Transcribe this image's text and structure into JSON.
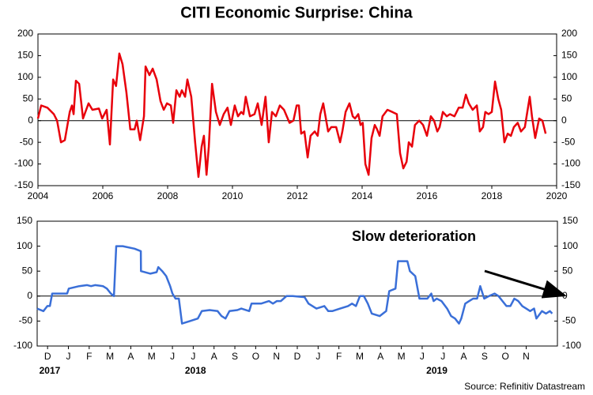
{
  "chart_data": [
    {
      "type": "line",
      "title": "CITI Economic Surprise: China",
      "xlim": [
        2004,
        2020
      ],
      "xticks": [
        2004,
        2006,
        2008,
        2010,
        2012,
        2014,
        2016,
        2018,
        2020
      ],
      "ylim": [
        -150,
        200
      ],
      "yticks": [
        -150,
        -100,
        -50,
        0,
        50,
        100,
        150,
        200
      ],
      "x": [
        2004.0,
        2004.1,
        2004.29,
        2004.49,
        2004.59,
        2004.71,
        2004.83,
        2004.98,
        2005.05,
        2005.1,
        2005.17,
        2005.27,
        2005.39,
        2005.56,
        2005.68,
        2005.88,
        2005.98,
        2006.12,
        2006.22,
        2006.32,
        2006.41,
        2006.51,
        2006.61,
        2006.73,
        2006.85,
        2006.98,
        2007.05,
        2007.15,
        2007.27,
        2007.32,
        2007.44,
        2007.54,
        2007.66,
        2007.78,
        2007.88,
        2007.98,
        2008.1,
        2008.17,
        2008.27,
        2008.37,
        2008.44,
        2008.54,
        2008.61,
        2008.73,
        2008.85,
        2008.95,
        2009.05,
        2009.12,
        2009.2,
        2009.27,
        2009.37,
        2009.49,
        2009.61,
        2009.73,
        2009.85,
        2009.95,
        2010.07,
        2010.17,
        2010.27,
        2010.34,
        2010.41,
        2010.54,
        2010.68,
        2010.78,
        2010.9,
        2011.02,
        2011.12,
        2011.22,
        2011.34,
        2011.46,
        2011.59,
        2011.76,
        2011.88,
        2011.98,
        2012.05,
        2012.12,
        2012.22,
        2012.32,
        2012.41,
        2012.54,
        2012.63,
        2012.71,
        2012.8,
        2012.95,
        2013.05,
        2013.2,
        2013.32,
        2013.39,
        2013.49,
        2013.61,
        2013.71,
        2013.78,
        2013.88,
        2013.95,
        2014.02,
        2014.1,
        2014.2,
        2014.29,
        2014.39,
        2014.46,
        2014.54,
        2014.63,
        2014.78,
        2014.93,
        2015.07,
        2015.17,
        2015.27,
        2015.37,
        2015.44,
        2015.54,
        2015.63,
        2015.76,
        2015.88,
        2016.0,
        2016.12,
        2016.22,
        2016.32,
        2016.39,
        2016.49,
        2016.61,
        2016.71,
        2016.85,
        2016.98,
        2017.1,
        2017.2,
        2017.29,
        2017.41,
        2017.54,
        2017.63,
        2017.73,
        2017.8,
        2017.9,
        2018.0,
        2018.1,
        2018.2,
        2018.29,
        2018.39,
        2018.49,
        2018.59,
        2018.68,
        2018.8,
        2018.9,
        2019.02,
        2019.17,
        2019.24,
        2019.34,
        2019.46,
        2019.56,
        2019.66
      ],
      "series": [
        {
          "color": "#e8000b",
          "values": [
            5,
            35,
            30,
            15,
            0,
            -50,
            -45,
            20,
            35,
            15,
            92,
            85,
            5,
            40,
            25,
            28,
            5,
            25,
            -55,
            95,
            80,
            155,
            130,
            65,
            -20,
            -20,
            0,
            -45,
            10,
            125,
            105,
            120,
            95,
            45,
            25,
            40,
            35,
            -5,
            70,
            55,
            70,
            55,
            95,
            55,
            -50,
            -130,
            -60,
            -35,
            -125,
            -60,
            85,
            20,
            -10,
            15,
            30,
            -10,
            35,
            10,
            20,
            15,
            55,
            10,
            15,
            40,
            -10,
            55,
            -50,
            20,
            10,
            35,
            25,
            -5,
            0,
            35,
            35,
            -30,
            -25,
            -85,
            -35,
            -25,
            -35,
            15,
            40,
            -25,
            -15,
            -15,
            -50,
            -25,
            20,
            40,
            10,
            5,
            15,
            -10,
            -5,
            -100,
            -125,
            -40,
            -10,
            -20,
            -35,
            10,
            25,
            20,
            15,
            -75,
            -110,
            -95,
            -50,
            -60,
            -10,
            0,
            -10,
            -35,
            10,
            0,
            -25,
            -15,
            20,
            10,
            15,
            10,
            30,
            30,
            60,
            40,
            25,
            35,
            -25,
            -15,
            20,
            15,
            20,
            90,
            50,
            25,
            -50,
            -30,
            -35,
            -15,
            -5,
            -25,
            -15,
            55,
            10,
            -40,
            5,
            0,
            -30
          ]
        }
      ]
    },
    {
      "type": "line",
      "source": "Source: Refinitiv Datastream",
      "annotation": "Slow deterioration",
      "xlim": [
        0,
        25
      ],
      "xticks": [
        {
          "value": 0.5,
          "label": "D"
        },
        {
          "value": 1.5,
          "label": "J"
        },
        {
          "value": 2.5,
          "label": "F"
        },
        {
          "value": 3.5,
          "label": "M"
        },
        {
          "value": 4.5,
          "label": "A"
        },
        {
          "value": 5.5,
          "label": "M"
        },
        {
          "value": 6.5,
          "label": "J"
        },
        {
          "value": 7.5,
          "label": "J"
        },
        {
          "value": 8.5,
          "label": "A"
        },
        {
          "value": 9.5,
          "label": "S"
        },
        {
          "value": 10.5,
          "label": "O"
        },
        {
          "value": 11.5,
          "label": "N"
        },
        {
          "value": 12.5,
          "label": "D"
        },
        {
          "value": 13.5,
          "label": "J"
        },
        {
          "value": 14.5,
          "label": "F"
        },
        {
          "value": 15.5,
          "label": "M"
        },
        {
          "value": 16.5,
          "label": "A"
        },
        {
          "value": 17.5,
          "label": "M"
        },
        {
          "value": 18.5,
          "label": "J"
        },
        {
          "value": 19.5,
          "label": "J"
        },
        {
          "value": 20.5,
          "label": "A"
        },
        {
          "value": 21.5,
          "label": "S"
        },
        {
          "value": 22.5,
          "label": "O"
        },
        {
          "value": 23.5,
          "label": "N"
        }
      ],
      "year_labels": [
        {
          "value": 0.1,
          "label": "2017"
        },
        {
          "value": 7.1,
          "label": "2018"
        },
        {
          "value": 18.7,
          "label": "2019"
        }
      ],
      "ylim": [
        -100,
        150
      ],
      "yticks": [
        -100,
        -50,
        0,
        50,
        100,
        150
      ],
      "x": [
        0,
        0.3,
        0.49,
        0.61,
        0.72,
        1.25,
        1.44,
        1.52,
        2.02,
        2.4,
        2.59,
        2.78,
        3.16,
        3.35,
        3.54,
        3.69,
        3.8,
        4.11,
        4.68,
        4.98,
        4.99,
        5.44,
        5.74,
        5.82,
        6.01,
        6.2,
        6.39,
        6.5,
        6.65,
        6.81,
        6.96,
        7.34,
        7.72,
        7.91,
        8.29,
        8.67,
        8.86,
        9.05,
        9.24,
        9.62,
        9.81,
        10.19,
        10.3,
        10.76,
        11.14,
        11.33,
        11.52,
        11.71,
        11.98,
        12.28,
        12.85,
        13.04,
        13.42,
        13.8,
        13.99,
        14.18,
        14.56,
        14.94,
        15.13,
        15.32,
        15.51,
        15.7,
        15.89,
        16.08,
        16.46,
        16.77,
        16.92,
        17.22,
        17.34,
        17.79,
        17.91,
        18.17,
        18.37,
        18.75,
        18.94,
        19.05,
        19.2,
        19.43,
        19.7,
        19.89,
        20.08,
        20.27,
        20.38,
        20.57,
        20.76,
        20.95,
        21.14,
        21.29,
        21.48,
        21.71,
        21.98,
        22.17,
        22.36,
        22.55,
        22.74,
        22.93,
        23.12,
        23.31,
        23.5,
        23.69,
        23.88,
        23.99,
        24.26,
        24.45,
        24.64,
        24.75
      ],
      "series": [
        {
          "color": "#3a6fd8",
          "values": [
            -25,
            -30,
            -20,
            -20,
            5,
            5,
            5,
            15,
            20,
            22,
            20,
            22,
            20,
            15,
            5,
            0,
            100,
            100,
            95,
            90,
            50,
            45,
            48,
            58,
            50,
            40,
            20,
            5,
            -5,
            -5,
            -55,
            -50,
            -45,
            -30,
            -28,
            -30,
            -40,
            -45,
            -30,
            -28,
            -25,
            -30,
            -15,
            -15,
            -10,
            -15,
            -10,
            -10,
            0,
            0,
            -2,
            -15,
            -25,
            -20,
            -30,
            -30,
            -25,
            -20,
            -15,
            -20,
            0,
            0,
            -15,
            -35,
            -40,
            -30,
            10,
            15,
            70,
            70,
            50,
            40,
            -5,
            -5,
            5,
            -10,
            -5,
            -10,
            -25,
            -40,
            -45,
            -55,
            -45,
            -15,
            -10,
            -5,
            -5,
            20,
            -5,
            0,
            5,
            0,
            -10,
            -20,
            -20,
            -5,
            -10,
            -20,
            -25,
            -30,
            -25,
            -45,
            -30,
            -35,
            -30,
            -35
          ]
        }
      ]
    }
  ]
}
